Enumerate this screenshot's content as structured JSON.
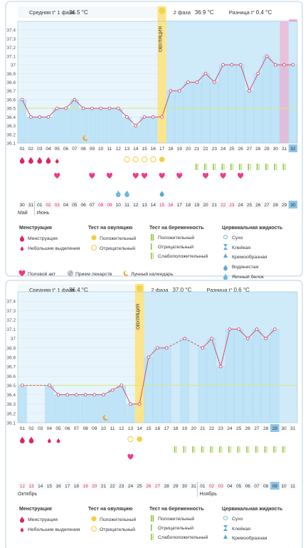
{
  "colors": {
    "bar": "#bfe3f7",
    "bar_edge": "#a7d4ee",
    "phase1_bg": "#e8f5fc",
    "phase2_bg": "#cfeaf8",
    "line": "#cc4466",
    "point_fill": "#ffffff",
    "ovulation": "#fbe48a",
    "ovulation_label_bg": "#f5d442",
    "pink": "#ff9ec4",
    "menstruation": "#e0245e",
    "heart": "#ee3a8c",
    "green": "#8cc63f",
    "egg_white": "#6ab8e4",
    "cover_line": "#d9e87a",
    "frame": "#b8d0e0"
  },
  "chart_data": [
    {
      "type": "bar",
      "phase1_label": "Средняя t° 1 фаза",
      "phase1_avg": "36.5 °C",
      "phase2_label": "2 фаза",
      "phase2_avg": "36.9 °C",
      "diff_label": "Разница t°",
      "diff_value": "0.4 °C",
      "ovulation_label": "ОВУЛЯЦИЯ",
      "ovulation_index": 16,
      "cover_line": 36.5,
      "ylim": [
        36.1,
        37.5
      ],
      "yticks": [
        "37.4",
        "37.3",
        "37.2",
        "37.1",
        "37",
        "36.9",
        "36.8",
        "36.7",
        "36.6",
        "36.5",
        "36.4",
        "36.3",
        "36.2",
        "36.1"
      ],
      "days": [
        "01",
        "02",
        "03",
        "04",
        "05",
        "06",
        "07",
        "08",
        "09",
        "10",
        "11",
        "12",
        "13",
        "14",
        "15",
        "16",
        "17",
        "18",
        "19",
        "20",
        "21",
        "22",
        "23",
        "24",
        "25",
        "26",
        "27",
        "28",
        "29",
        "30",
        "31",
        "32"
      ],
      "luteal_days": [
        "01",
        "02",
        "03",
        "04",
        "05",
        "06",
        "07",
        "08",
        "09",
        "10",
        "11",
        "12",
        "13",
        "14",
        "15"
      ],
      "values": [
        36.6,
        36.4,
        36.4,
        36.4,
        36.5,
        36.5,
        36.6,
        36.5,
        36.5,
        36.5,
        36.5,
        36.5,
        36.4,
        36.3,
        36.4,
        36.4,
        36.4,
        36.7,
        36.7,
        36.8,
        36.8,
        36.9,
        36.8,
        37.0,
        37.0,
        37.0,
        36.7,
        36.9,
        37.1,
        37.0,
        37.0,
        37.0
      ],
      "menstruation_heavy": [
        0,
        1,
        2,
        3
      ],
      "menstruation_light": [
        4
      ],
      "moon_index": 7,
      "ov_test_pos": [
        16
      ],
      "ov_test_neg": [
        12,
        13,
        14,
        15
      ],
      "sex_days": [
        4,
        8,
        10,
        13,
        14,
        16,
        18,
        21,
        23,
        25
      ],
      "egg_white_days": [
        11,
        12
      ],
      "watery_days": [
        16
      ],
      "preg_weak": [
        20,
        21,
        22,
        23,
        24,
        25,
        26,
        27,
        28,
        29,
        30
      ],
      "dates": [
        "30",
        "31",
        "01",
        "02",
        "03",
        "04",
        "05",
        "06",
        "07",
        "08",
        "09",
        "10",
        "11",
        "12",
        "13",
        "14",
        "15",
        "16",
        "17",
        "18",
        "19",
        "20",
        "21",
        "22",
        "23",
        "24",
        "25",
        "26",
        "27",
        "28",
        "29",
        "30"
      ],
      "red_dates": [
        3,
        4,
        9,
        10,
        16,
        17,
        23,
        24
      ],
      "month1": "Май",
      "month2": "Июнь",
      "month2_index": 2
    },
    {
      "type": "bar",
      "phase1_label": "Средняя t° 1 фаза",
      "phase1_avg": "36.4 °C",
      "phase2_label": "2 фаза",
      "phase2_avg": "37.0 °C",
      "diff_label": "Разница t°",
      "diff_value": "0.6 °C",
      "ovulation_label": "ОВУЛЯЦИЯ",
      "ovulation_index": 13,
      "cover_line": 36.5,
      "ylim": [
        36.1,
        37.5
      ],
      "yticks": [
        "37.4",
        "37.3",
        "37.2",
        "37.1",
        "37",
        "36.9",
        "36.8",
        "36.7",
        "36.6",
        "36.5",
        "36.4",
        "36.3",
        "36.2",
        "36.1"
      ],
      "days": [
        "01",
        "02",
        "03",
        "04",
        "05",
        "06",
        "07",
        "08",
        "09",
        "10",
        "11",
        "12",
        "13",
        "14",
        "15",
        "16",
        "17",
        "18",
        "19",
        "20",
        "21",
        "22",
        "23",
        "24",
        "25",
        "26",
        "27",
        "28",
        "29",
        "30",
        "31"
      ],
      "luteal_days": [
        "01",
        "02",
        "03",
        "04",
        "05",
        "06",
        "07",
        "08",
        "09",
        "10",
        "11",
        "12",
        "13",
        "14",
        "15",
        "16",
        "17"
      ],
      "values": [
        36.5,
        null,
        null,
        36.5,
        36.4,
        36.4,
        36.4,
        36.4,
        36.4,
        36.4,
        36.45,
        36.5,
        36.3,
        36.3,
        36.8,
        36.9,
        36.9,
        null,
        37.0,
        null,
        36.9,
        37.0,
        36.7,
        37.1,
        37.1,
        37.0,
        37.1,
        37.0,
        37.1,
        null,
        null
      ],
      "menstruation_heavy": [
        0,
        1
      ],
      "menstruation_light": [
        3,
        4
      ],
      "moon_index": 9,
      "ov_test_pos": [
        13
      ],
      "ov_test_neg": [
        12
      ],
      "sex_days": [
        12
      ],
      "egg_white_days": [],
      "watery_days": [],
      "preg_weak": [
        17,
        18,
        19,
        20,
        21,
        22,
        23,
        24,
        25,
        26,
        27,
        28,
        29
      ],
      "dates": [
        "12",
        "13",
        "14",
        "15",
        "16",
        "17",
        "18",
        "19",
        "20",
        "21",
        "22",
        "23",
        "24",
        "25",
        "26",
        "27",
        "28",
        "29",
        "30",
        "31",
        "01",
        "02",
        "03",
        "04",
        "05",
        "06",
        "07",
        "08",
        "09",
        "10",
        "11"
      ],
      "red_dates": [
        0,
        1,
        7,
        8,
        14,
        15,
        21,
        22
      ],
      "month1": "Октябрь",
      "month2": "Ноябрь",
      "month2_index": 20
    }
  ],
  "legend": {
    "menstruation_title": "Менструация",
    "menstruation": "Менструация",
    "spotting": "Небольшие выделения",
    "ovulation_title": "Тест на овуляцию",
    "positive": "Положительный",
    "negative": "Отрицательный",
    "pregnancy_title": "Тест на беременность",
    "preg_positive": "Положительный",
    "preg_negative": "Отрицательный",
    "preg_weak": "Слабоположительный",
    "cervical_title": "Цервикальная жидкость",
    "dry": "Сухо",
    "sticky": "Клейкая",
    "creamy": "Кремообразная",
    "watery": "Водянистая",
    "egg_white": "Яичный белок",
    "sex": "Половой акт",
    "pills": "Прием лекарств",
    "moon": "Лунный календарь"
  }
}
